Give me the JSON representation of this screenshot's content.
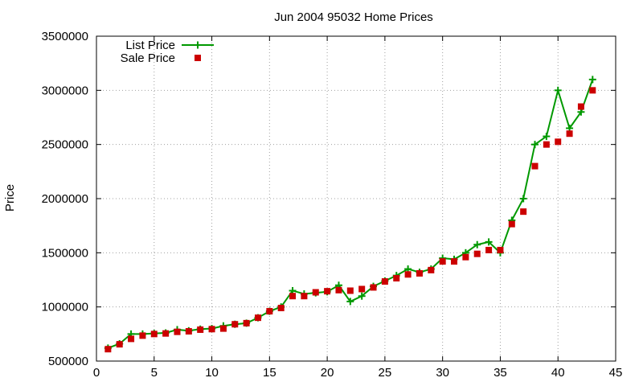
{
  "chart_data": {
    "type": "line",
    "title": "Jun 2004 95032 Home Prices",
    "xlabel": "",
    "ylabel": "Price",
    "xlim": [
      0,
      45
    ],
    "ylim": [
      500000,
      3500000
    ],
    "x_ticks": [
      0,
      5,
      10,
      15,
      20,
      25,
      30,
      35,
      40,
      45
    ],
    "y_ticks": [
      500000,
      1000000,
      1500000,
      2000000,
      2500000,
      3000000,
      3500000
    ],
    "grid": true,
    "legend_position": "top-left",
    "series": [
      {
        "name": "List Price",
        "style": "line-with-plus-markers",
        "color": "#009900",
        "points": [
          [
            1,
            620000
          ],
          [
            2,
            660000
          ],
          [
            3,
            750000
          ],
          [
            4,
            750000
          ],
          [
            5,
            755000
          ],
          [
            6,
            760000
          ],
          [
            7,
            790000
          ],
          [
            8,
            780000
          ],
          [
            9,
            795000
          ],
          [
            10,
            800000
          ],
          [
            11,
            825000
          ],
          [
            12,
            840000
          ],
          [
            13,
            850000
          ],
          [
            14,
            900000
          ],
          [
            15,
            960000
          ],
          [
            16,
            1000000
          ],
          [
            17,
            1150000
          ],
          [
            18,
            1120000
          ],
          [
            19,
            1130000
          ],
          [
            20,
            1140000
          ],
          [
            21,
            1200000
          ],
          [
            22,
            1050000
          ],
          [
            23,
            1100000
          ],
          [
            24,
            1190000
          ],
          [
            25,
            1240000
          ],
          [
            26,
            1290000
          ],
          [
            27,
            1350000
          ],
          [
            28,
            1320000
          ],
          [
            29,
            1350000
          ],
          [
            30,
            1450000
          ],
          [
            31,
            1440000
          ],
          [
            32,
            1500000
          ],
          [
            33,
            1575000
          ],
          [
            34,
            1600000
          ],
          [
            35,
            1500000
          ],
          [
            36,
            1800000
          ],
          [
            37,
            2000000
          ],
          [
            38,
            2500000
          ],
          [
            39,
            2575000
          ],
          [
            40,
            3000000
          ],
          [
            41,
            2650000
          ],
          [
            42,
            2800000
          ],
          [
            43,
            3100000
          ]
        ]
      },
      {
        "name": "Sale Price",
        "style": "square-markers",
        "color": "#cc0000",
        "points": [
          [
            1,
            610000
          ],
          [
            2,
            655000
          ],
          [
            3,
            705000
          ],
          [
            4,
            735000
          ],
          [
            5,
            750000
          ],
          [
            6,
            755000
          ],
          [
            7,
            770000
          ],
          [
            8,
            775000
          ],
          [
            9,
            790000
          ],
          [
            10,
            795000
          ],
          [
            11,
            800000
          ],
          [
            12,
            840000
          ],
          [
            13,
            850000
          ],
          [
            14,
            900000
          ],
          [
            15,
            960000
          ],
          [
            16,
            990000
          ],
          [
            17,
            1100000
          ],
          [
            18,
            1100000
          ],
          [
            19,
            1135000
          ],
          [
            20,
            1145000
          ],
          [
            21,
            1155000
          ],
          [
            22,
            1150000
          ],
          [
            23,
            1165000
          ],
          [
            24,
            1180000
          ],
          [
            25,
            1235000
          ],
          [
            26,
            1265000
          ],
          [
            27,
            1300000
          ],
          [
            28,
            1310000
          ],
          [
            29,
            1340000
          ],
          [
            30,
            1420000
          ],
          [
            31,
            1420000
          ],
          [
            32,
            1460000
          ],
          [
            33,
            1490000
          ],
          [
            34,
            1525000
          ],
          [
            35,
            1525000
          ],
          [
            36,
            1765000
          ],
          [
            37,
            1880000
          ],
          [
            38,
            2300000
          ],
          [
            39,
            2500000
          ],
          [
            40,
            2525000
          ],
          [
            41,
            2600000
          ],
          [
            42,
            2850000
          ],
          [
            43,
            3000000
          ]
        ]
      }
    ]
  }
}
